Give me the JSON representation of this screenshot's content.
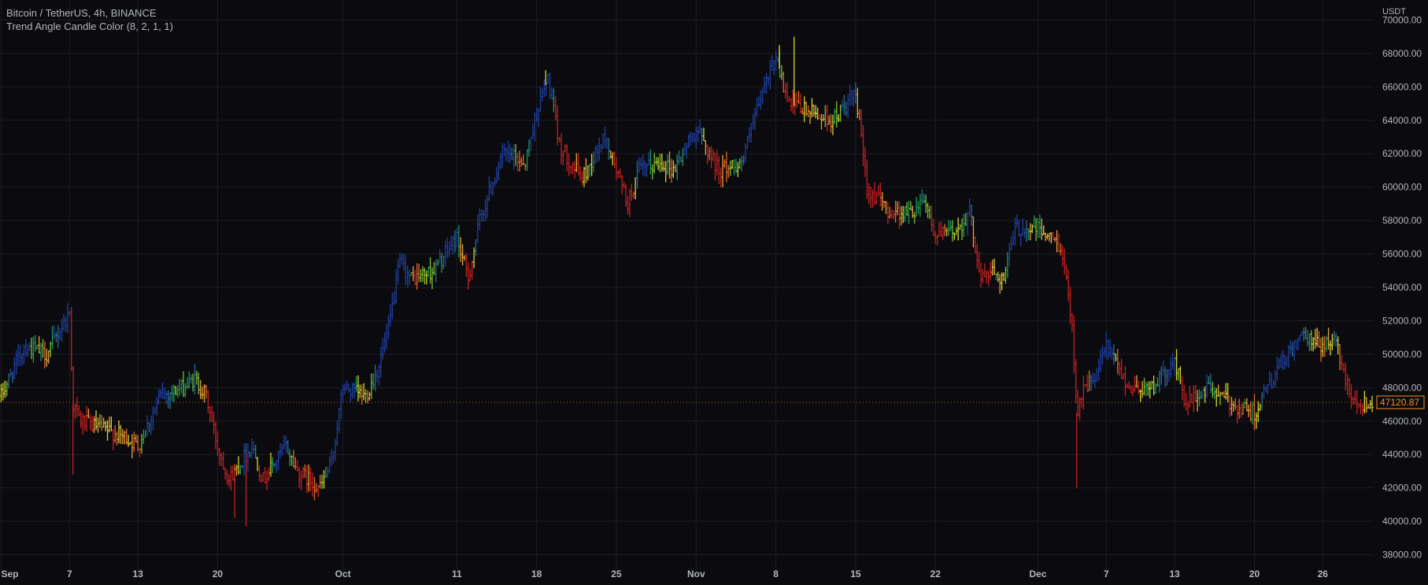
{
  "header": {
    "symbol_line": "Bitcoin / TetherUS, 4h, BINANCE",
    "indicator_line": "Trend Angle Candle Color (8, 2, 1, 1)"
  },
  "price_axis": {
    "currency": "USDT",
    "current_price_label": "47120.87"
  },
  "colors": {
    "background": "#0b0b0f",
    "grid": "#1b1d24",
    "axis_text": "#b2b5be",
    "current_price": "#f7931a",
    "gradient": [
      "#1f3f9e",
      "#2c6b8f",
      "#1e9a57",
      "#7bc030",
      "#d6d62a",
      "#e8a23a",
      "#e0672a",
      "#c42020"
    ]
  },
  "chart_data": {
    "type": "ohlc",
    "title": "Bitcoin / TetherUS, 4h, BINANCE",
    "ylabel": "USDT",
    "ylim": [
      36800,
      71200
    ],
    "grid": true,
    "x_tick_labels": [
      "Sep",
      "7",
      "13",
      "20",
      "Oct",
      "11",
      "18",
      "25",
      "Nov",
      "8",
      "15",
      "22",
      "Dec",
      "7",
      "13",
      "20",
      "26"
    ],
    "x_tick_day_index": [
      0,
      6,
      12,
      19,
      30,
      40,
      47,
      54,
      61,
      68,
      75,
      82,
      91,
      97,
      103,
      110,
      116
    ],
    "y_ticks": [
      38000,
      40000,
      42000,
      44000,
      46000,
      48000,
      50000,
      52000,
      54000,
      56000,
      58000,
      60000,
      62000,
      64000,
      66000,
      68000,
      70000
    ],
    "y_tick_labels": [
      "38000.00",
      "40000.00",
      "42000.00",
      "44000.00",
      "46000.00",
      "48000.00",
      "50000.00",
      "52000.00",
      "54000.00",
      "56000.00",
      "58000.00",
      "60000.00",
      "62000.00",
      "64000.00",
      "66000.00",
      "68000.00",
      "70000.00"
    ],
    "current_price": 47120.87,
    "bars_per_day": 6,
    "day_range": [
      -0.1,
      120.4
    ],
    "price_path": [
      {
        "day": 0,
        "price": 47500
      },
      {
        "day": 2,
        "price": 50500
      },
      {
        "day": 4,
        "price": 50000
      },
      {
        "day": 6,
        "price": 52500
      },
      {
        "day": 6.3,
        "price": 47000
      },
      {
        "day": 7,
        "price": 46000
      },
      {
        "day": 9,
        "price": 45500
      },
      {
        "day": 11,
        "price": 45000
      },
      {
        "day": 12,
        "price": 44500
      },
      {
        "day": 13,
        "price": 46000
      },
      {
        "day": 14,
        "price": 47500
      },
      {
        "day": 16,
        "price": 48000
      },
      {
        "day": 17,
        "price": 48500
      },
      {
        "day": 18,
        "price": 47500
      },
      {
        "day": 19,
        "price": 44500
      },
      {
        "day": 20,
        "price": 42500
      },
      {
        "day": 21,
        "price": 43500
      },
      {
        "day": 22,
        "price": 44500
      },
      {
        "day": 23,
        "price": 42500
      },
      {
        "day": 25,
        "price": 44500
      },
      {
        "day": 26,
        "price": 43000
      },
      {
        "day": 28,
        "price": 42000
      },
      {
        "day": 29,
        "price": 43500
      },
      {
        "day": 30,
        "price": 48000
      },
      {
        "day": 32,
        "price": 47500
      },
      {
        "day": 33,
        "price": 49000
      },
      {
        "day": 34,
        "price": 51500
      },
      {
        "day": 35,
        "price": 55500
      },
      {
        "day": 36,
        "price": 54500
      },
      {
        "day": 38,
        "price": 55000
      },
      {
        "day": 40,
        "price": 57000
      },
      {
        "day": 41,
        "price": 54500
      },
      {
        "day": 42,
        "price": 58000
      },
      {
        "day": 44,
        "price": 62000
      },
      {
        "day": 46,
        "price": 61500
      },
      {
        "day": 47,
        "price": 64500
      },
      {
        "day": 48,
        "price": 66500
      },
      {
        "day": 49,
        "price": 62500
      },
      {
        "day": 51,
        "price": 60500
      },
      {
        "day": 53,
        "price": 63000
      },
      {
        "day": 55,
        "price": 59000
      },
      {
        "day": 56,
        "price": 61000
      },
      {
        "day": 58,
        "price": 61500
      },
      {
        "day": 59,
        "price": 61000
      },
      {
        "day": 61,
        "price": 63500
      },
      {
        "day": 63,
        "price": 61000
      },
      {
        "day": 65,
        "price": 61500
      },
      {
        "day": 67,
        "price": 66000
      },
      {
        "day": 68,
        "price": 68000
      },
      {
        "day": 69,
        "price": 65000
      },
      {
        "day": 71,
        "price": 64500
      },
      {
        "day": 73,
        "price": 64000
      },
      {
        "day": 75,
        "price": 65500
      },
      {
        "day": 76,
        "price": 60000
      },
      {
        "day": 78,
        "price": 58500
      },
      {
        "day": 80,
        "price": 58500
      },
      {
        "day": 81,
        "price": 59500
      },
      {
        "day": 82,
        "price": 57000
      },
      {
        "day": 84,
        "price": 57500
      },
      {
        "day": 85,
        "price": 58500
      },
      {
        "day": 86,
        "price": 54500
      },
      {
        "day": 87,
        "price": 55000
      },
      {
        "day": 88,
        "price": 54500
      },
      {
        "day": 89,
        "price": 57500
      },
      {
        "day": 90,
        "price": 57500
      },
      {
        "day": 91,
        "price": 57500
      },
      {
        "day": 93,
        "price": 56500
      },
      {
        "day": 94,
        "price": 52000
      },
      {
        "day": 94.4,
        "price": 46500
      },
      {
        "day": 95,
        "price": 48000
      },
      {
        "day": 96,
        "price": 48500
      },
      {
        "day": 97,
        "price": 50500
      },
      {
        "day": 99,
        "price": 48000
      },
      {
        "day": 101,
        "price": 48000
      },
      {
        "day": 103,
        "price": 49500
      },
      {
        "day": 104,
        "price": 47000
      },
      {
        "day": 106,
        "price": 48000
      },
      {
        "day": 108,
        "price": 47000
      },
      {
        "day": 110,
        "price": 46500
      },
      {
        "day": 112,
        "price": 49000
      },
      {
        "day": 114,
        "price": 51000
      },
      {
        "day": 116,
        "price": 50500
      },
      {
        "day": 117,
        "price": 51000
      },
      {
        "day": 118,
        "price": 48500
      },
      {
        "day": 119,
        "price": 47000
      },
      {
        "day": 120.4,
        "price": 47100
      }
    ],
    "wicks": [
      {
        "day": 6.3,
        "low": 42800
      },
      {
        "day": 20.5,
        "low": 40200
      },
      {
        "day": 21.5,
        "low": 39700
      },
      {
        "day": 47.8,
        "high": 67000
      },
      {
        "day": 68.3,
        "high": 68500
      },
      {
        "day": 69.6,
        "high": 69000
      },
      {
        "day": 94.4,
        "low": 42000
      }
    ]
  }
}
